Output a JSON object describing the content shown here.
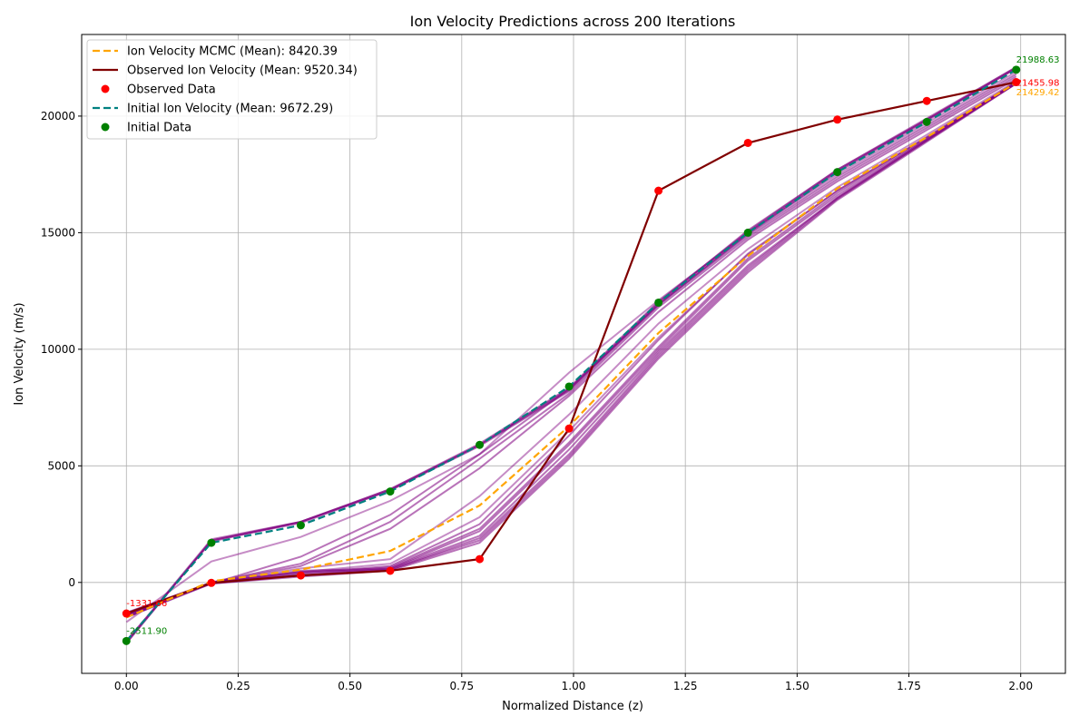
{
  "chart_data": {
    "type": "line",
    "title": "Ion Velocity Predictions across 200 Iterations",
    "xlabel": "Normalized Distance (z)",
    "ylabel": "Ion Velocity (m/s)",
    "xlim": [
      -0.1,
      2.1
    ],
    "ylim": [
      -3900,
      23500
    ],
    "grid": true,
    "legend_position": "top-left",
    "x_ticks": [
      0.0,
      0.25,
      0.5,
      0.75,
      1.0,
      1.25,
      1.5,
      1.75,
      2.0
    ],
    "x_tick_labels": [
      "0.00",
      "0.25",
      "0.50",
      "0.75",
      "1.00",
      "1.25",
      "1.50",
      "1.75",
      "2.00"
    ],
    "y_ticks": [
      0,
      5000,
      10000,
      15000,
      20000
    ],
    "y_tick_labels": [
      "0",
      "5000",
      "10000",
      "15000",
      "20000"
    ],
    "x": [
      0.0,
      0.19,
      0.39,
      0.59,
      0.79,
      0.99,
      1.19,
      1.39,
      1.59,
      1.79,
      1.99
    ],
    "series": [
      {
        "name": "Ion Velocity MCMC (Mean): 8420.39",
        "style": "dashed",
        "color": "#ffa500",
        "values": [
          -1500,
          50,
          550,
          1350,
          3300,
          6700,
          10700,
          14000,
          16900,
          19100,
          21429.42
        ]
      },
      {
        "name": "Observed Ion Velocity (Mean: 9520.34)",
        "style": "solid",
        "color": "#800000",
        "values": [
          -1331.66,
          -20,
          300,
          500,
          1000,
          6600,
          16800,
          18850,
          19850,
          20650,
          21455.98
        ]
      },
      {
        "name": "Observed Data",
        "style": "scatter",
        "color": "#ff0000",
        "values": [
          -1331.66,
          -20,
          300,
          500,
          1000,
          6600,
          16800,
          18850,
          19850,
          20650,
          21455.98
        ]
      },
      {
        "name": "Initial Ion Velocity (Mean: 9672.29)",
        "style": "dashed",
        "color": "#008080",
        "values": [
          -2511.9,
          1700,
          2450,
          3900,
          5900,
          8400,
          12000,
          15000,
          17600,
          19750,
          21988.63
        ]
      },
      {
        "name": "Initial Data",
        "style": "scatter",
        "color": "#008000",
        "values": [
          -2511.9,
          1700,
          2450,
          3900,
          5900,
          8400,
          12000,
          15000,
          17600,
          19750,
          21988.63
        ]
      }
    ],
    "iteration_lines": {
      "color": "#800080",
      "lines": [
        [
          -2600,
          1800,
          2600,
          4000,
          5900,
          8300,
          12000,
          15100,
          17700,
          19850,
          22100
        ],
        [
          -2600,
          1800,
          2550,
          3950,
          5850,
          8200,
          11900,
          14950,
          17600,
          19800,
          22050
        ],
        [
          -2550,
          1850,
          2600,
          3950,
          5900,
          8250,
          11950,
          15000,
          17650,
          19850,
          22050
        ],
        [
          -2500,
          1750,
          2600,
          4000,
          5950,
          8350,
          12050,
          15050,
          17700,
          19900,
          22100
        ],
        [
          -1350,
          -50,
          250,
          500,
          1700,
          5300,
          9600,
          13300,
          16400,
          18900,
          21400
        ],
        [
          -1400,
          -50,
          300,
          550,
          1800,
          5400,
          9700,
          13400,
          16450,
          18950,
          21420
        ],
        [
          -1300,
          0,
          300,
          600,
          2200,
          5900,
          10000,
          13800,
          16600,
          19000,
          21450
        ],
        [
          -1350,
          -30,
          350,
          650,
          2300,
          6000,
          10100,
          13900,
          16700,
          19050,
          21460
        ],
        [
          -1400,
          0,
          400,
          700,
          2500,
          6300,
          10400,
          14100,
          16800,
          19100,
          21430
        ],
        [
          -1500,
          0,
          700,
          2300,
          4900,
          8000,
          11600,
          14700,
          17200,
          19400,
          21600
        ],
        [
          -1450,
          0,
          800,
          2600,
          5300,
          8100,
          11800,
          14800,
          17300,
          19500,
          21700
        ],
        [
          -1500,
          -50,
          1100,
          2900,
          5500,
          8300,
          11900,
          14900,
          17400,
          19600,
          21800
        ],
        [
          -1500,
          0,
          500,
          600,
          2000,
          5700,
          9900,
          13600,
          16500,
          19000,
          21400
        ],
        [
          -1400,
          0,
          450,
          550,
          1900,
          5500,
          9800,
          13500,
          16500,
          18950,
          21400
        ]
      ],
      "faint_lines": [
        [
          -1700,
          900,
          1950,
          3500,
          5500,
          9000,
          12100,
          15000,
          17500,
          19700,
          21900
        ],
        [
          -1400,
          0,
          600,
          1000,
          3700,
          7200,
          11100,
          14300,
          16950,
          19200,
          21500
        ],
        [
          -1300,
          -20,
          450,
          800,
          2800,
          6500,
          10500,
          14050,
          16800,
          19100,
          21420
        ]
      ]
    },
    "annotations": [
      {
        "text": "21988.63",
        "color": "#008000",
        "x": 1.99,
        "y": 21988.63,
        "anchor": "above"
      },
      {
        "text": "21455.98",
        "color": "#ff0000",
        "x": 1.99,
        "y": 21455.98,
        "anchor": "mid"
      },
      {
        "text": "21429.42",
        "color": "#ffa500",
        "x": 1.99,
        "y": 21429.42,
        "anchor": "below"
      },
      {
        "text": "-1331.66",
        "color": "#ff0000",
        "x": 0.0,
        "y": -1331.66,
        "anchor": "above"
      },
      {
        "text": "-2511.90",
        "color": "#008000",
        "x": 0.0,
        "y": -2511.9,
        "anchor": "above"
      }
    ]
  }
}
